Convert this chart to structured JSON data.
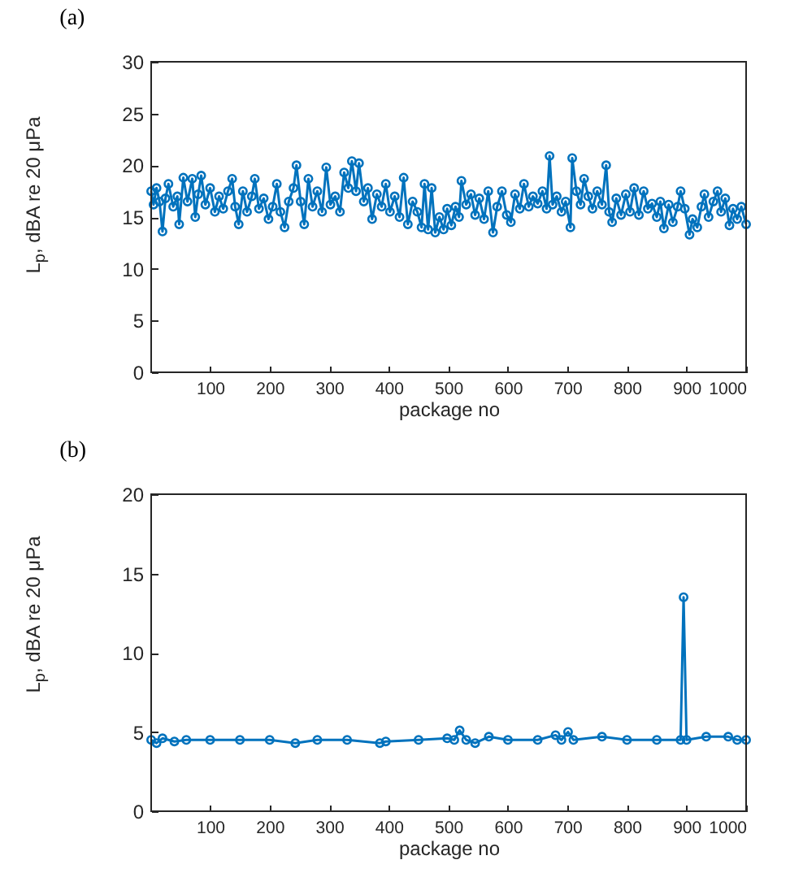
{
  "chart_data": [
    {
      "type": "line",
      "title": "(a)",
      "xlabel": "package no",
      "ylabel": "L$_{p}$, dBA re 20 μPa",
      "marker": "circle",
      "line_style": "solid",
      "grid": false,
      "xlim": [
        1,
        1000
      ],
      "xticks": [
        100,
        200,
        300,
        400,
        500,
        600,
        700,
        800,
        900,
        1000
      ],
      "ylim": [
        0,
        30
      ],
      "yticks": [
        0,
        5,
        10,
        15,
        20,
        25,
        30
      ],
      "x": [
        1,
        5,
        10,
        15,
        20,
        25,
        30,
        38,
        45,
        48,
        55,
        62,
        70,
        75,
        80,
        85,
        92,
        100,
        108,
        115,
        122,
        130,
        137,
        142,
        148,
        155,
        162,
        170,
        175,
        182,
        190,
        198,
        205,
        212,
        218,
        225,
        232,
        240,
        245,
        252,
        258,
        265,
        272,
        280,
        288,
        295,
        302,
        310,
        318,
        325,
        332,
        338,
        345,
        350,
        358,
        365,
        372,
        380,
        388,
        395,
        402,
        410,
        418,
        425,
        432,
        440,
        448,
        455,
        460,
        466,
        472,
        478,
        485,
        492,
        498,
        505,
        512,
        518,
        522,
        530,
        538,
        545,
        552,
        560,
        567,
        575,
        582,
        590,
        598,
        605,
        612,
        620,
        627,
        635,
        642,
        650,
        658,
        665,
        670,
        675,
        682,
        690,
        697,
        705,
        708,
        715,
        722,
        728,
        735,
        742,
        750,
        758,
        765,
        770,
        775,
        782,
        790,
        798,
        805,
        812,
        820,
        828,
        835,
        842,
        850,
        856,
        862,
        870,
        877,
        885,
        890,
        897,
        905,
        910,
        918,
        925,
        930,
        937,
        945,
        952,
        958,
        965,
        972,
        978,
        985,
        992,
        1000
      ],
      "series": [
        {
          "color": "#0072bd",
          "values": [
            17.5,
            16.2,
            17.8,
            16.5,
            13.6,
            16.8,
            18.2,
            16.0,
            17.0,
            14.3,
            18.8,
            16.5,
            18.7,
            15.0,
            17.2,
            19.0,
            16.2,
            17.8,
            15.5,
            17.0,
            15.8,
            17.5,
            18.7,
            16.0,
            14.3,
            17.5,
            15.5,
            17.0,
            18.7,
            15.8,
            16.8,
            14.8,
            16.0,
            18.2,
            15.5,
            14.0,
            16.5,
            17.8,
            20.0,
            16.5,
            14.3,
            18.7,
            16.0,
            17.5,
            15.5,
            19.8,
            16.2,
            17.0,
            15.5,
            19.3,
            17.8,
            20.4,
            17.5,
            20.2,
            16.5,
            17.8,
            14.8,
            17.2,
            16.0,
            18.2,
            15.5,
            17.0,
            15.0,
            18.8,
            14.3,
            16.5,
            15.5,
            14.0,
            18.2,
            13.8,
            17.8,
            13.5,
            15.0,
            13.8,
            15.8,
            14.2,
            16.0,
            15.0,
            18.5,
            16.2,
            17.2,
            15.2,
            16.8,
            14.8,
            17.5,
            13.5,
            16.0,
            17.5,
            15.2,
            14.5,
            17.2,
            15.8,
            18.2,
            16.0,
            17.0,
            16.3,
            17.5,
            15.8,
            20.9,
            16.2,
            17.0,
            15.5,
            16.5,
            14.0,
            20.7,
            17.5,
            16.2,
            18.7,
            17.0,
            15.8,
            17.5,
            16.2,
            20.0,
            15.5,
            14.5,
            16.8,
            15.2,
            17.2,
            15.5,
            17.8,
            15.2,
            17.5,
            15.8,
            16.3,
            15.0,
            16.5,
            13.9,
            16.2,
            14.5,
            16.0,
            17.5,
            15.8,
            13.3,
            14.8,
            14.0,
            16.0,
            17.2,
            15.0,
            16.5,
            17.5,
            15.5,
            16.8,
            14.2,
            15.8,
            14.8,
            16.0,
            14.3
          ]
        }
      ]
    },
    {
      "type": "line",
      "title": "(b)",
      "xlabel": "package no",
      "ylabel": "L$_{p}$, dBA re 20 μPa",
      "marker": "circle",
      "line_style": "solid",
      "grid": false,
      "xlim": [
        1,
        1000
      ],
      "xticks": [
        100,
        200,
        300,
        400,
        500,
        600,
        700,
        800,
        900,
        1000
      ],
      "ylim": [
        0,
        20
      ],
      "yticks": [
        0,
        5,
        10,
        15,
        20
      ],
      "x": [
        1,
        10,
        20,
        40,
        60,
        100,
        150,
        200,
        243,
        280,
        330,
        385,
        395,
        450,
        498,
        510,
        519,
        530,
        545,
        568,
        600,
        650,
        680,
        690,
        701,
        710,
        758,
        800,
        850,
        890,
        895,
        900,
        933,
        970,
        985,
        1000
      ],
      "series": [
        {
          "color": "#0072bd",
          "values": [
            4.5,
            4.3,
            4.6,
            4.4,
            4.5,
            4.5,
            4.5,
            4.5,
            4.3,
            4.5,
            4.5,
            4.3,
            4.4,
            4.5,
            4.6,
            4.5,
            5.1,
            4.5,
            4.3,
            4.7,
            4.5,
            4.5,
            4.8,
            4.5,
            5.0,
            4.5,
            4.7,
            4.5,
            4.5,
            4.5,
            13.5,
            4.5,
            4.7,
            4.7,
            4.5,
            4.5
          ]
        }
      ]
    }
  ]
}
